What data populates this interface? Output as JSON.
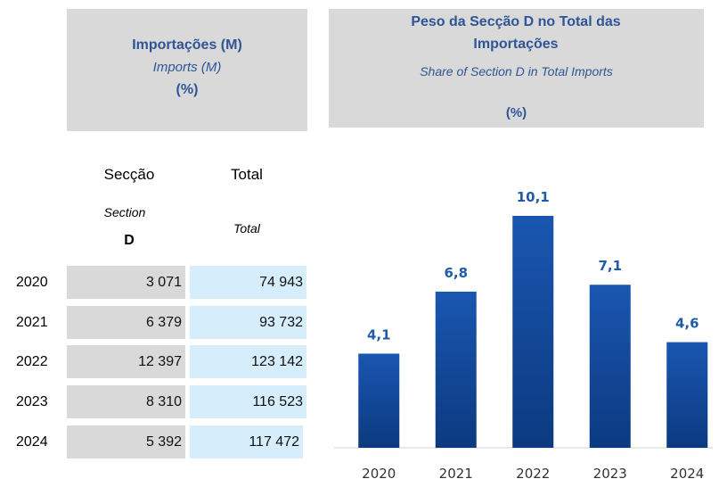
{
  "table": {
    "header": {
      "title": "Importações (M)",
      "subtitle": "Imports (M)",
      "unit": "(%)"
    },
    "columns": [
      {
        "label": "Secção",
        "sublabel": "Section",
        "code": "D"
      },
      {
        "label": "Total",
        "sublabel": "Total"
      }
    ],
    "rows": [
      {
        "year": "2020",
        "section": "3 071",
        "total": "74 943"
      },
      {
        "year": "2021",
        "section": "6 379",
        "total": "93 732"
      },
      {
        "year": "2022",
        "section": "12 397",
        "total": "123 142"
      },
      {
        "year": "2023",
        "section": "8 310",
        "total": "116 523"
      },
      {
        "year": "2024",
        "section": "5 392",
        "total": "117 472"
      }
    ]
  },
  "chart_data": {
    "type": "bar",
    "title": "Peso da Secção D no Total das Importações",
    "subtitle": "Share of Section D in Total Imports",
    "unit": "(%)",
    "categories": [
      "2020",
      "2021",
      "2022",
      "2023",
      "2024"
    ],
    "values": [
      4.1,
      6.8,
      10.1,
      7.1,
      4.6
    ],
    "value_labels": [
      "4,1",
      "6,8",
      "10,1",
      "7,1",
      "4,6"
    ],
    "color": "#1a56b0"
  }
}
